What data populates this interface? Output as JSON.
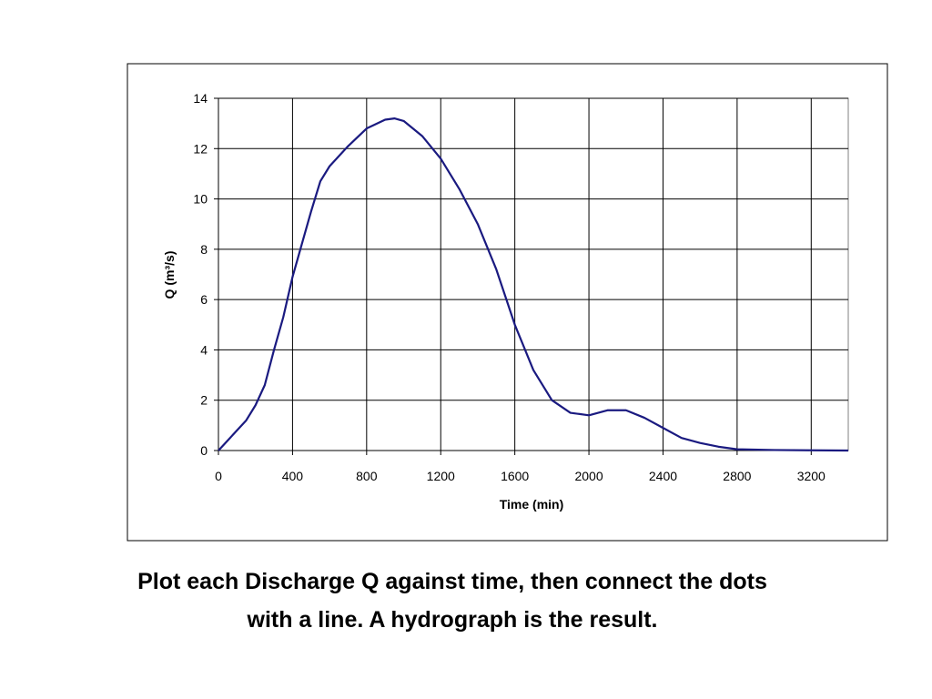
{
  "chart_data": {
    "type": "line",
    "x_label": "Time (min)",
    "y_label": "Q (m³/s)",
    "x": [
      0,
      100,
      150,
      200,
      250,
      300,
      350,
      400,
      450,
      500,
      550,
      600,
      700,
      800,
      900,
      950,
      1000,
      1100,
      1200,
      1300,
      1400,
      1500,
      1600,
      1700,
      1800,
      1900,
      2000,
      2100,
      2200,
      2300,
      2400,
      2500,
      2600,
      2700,
      2800,
      3000,
      3200,
      3400
    ],
    "series": [
      {
        "color": "#1a1a80",
        "values": [
          0,
          0.8,
          1.2,
          1.8,
          2.6,
          4.0,
          5.3,
          6.9,
          8.2,
          9.5,
          10.7,
          11.3,
          12.1,
          12.8,
          13.15,
          13.2,
          13.1,
          12.5,
          11.6,
          10.4,
          9.0,
          7.2,
          5.0,
          3.2,
          2.0,
          1.5,
          1.4,
          1.6,
          1.6,
          1.3,
          0.9,
          0.5,
          0.3,
          0.15,
          0.05,
          0.02,
          0.01,
          0
        ]
      }
    ],
    "xlim": [
      0,
      3400
    ],
    "ylim": [
      0,
      14
    ],
    "xticks": [
      0,
      400,
      800,
      1200,
      1600,
      2000,
      2400,
      2800,
      3200
    ],
    "yticks": [
      0,
      2,
      4,
      6,
      8,
      10,
      12,
      14
    ],
    "grid": true
  },
  "caption": [
    "Plot each Discharge Q against time, then connect the dots",
    "with a line. A hydrograph is the result."
  ]
}
